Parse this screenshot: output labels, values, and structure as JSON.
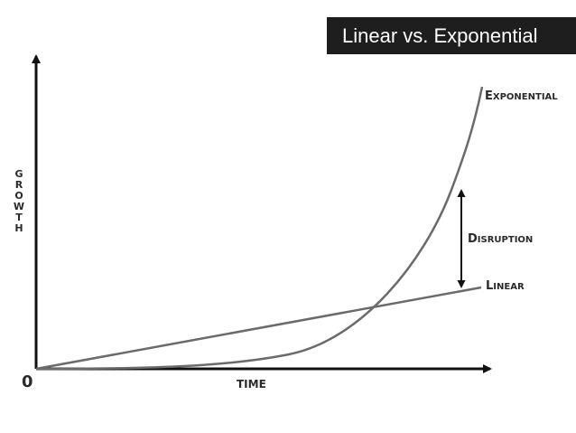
{
  "title": "Linear vs. Exponential",
  "labels": {
    "y_axis": [
      "G",
      "R",
      "O",
      "W",
      "T",
      "H"
    ],
    "x_axis": "TIME",
    "origin": "0",
    "exponential": {
      "big": "E",
      "small": "XPONENTIAL"
    },
    "linear": {
      "big": "L",
      "small": "INEAR"
    },
    "disruption": {
      "big": "D",
      "small": "ISRUPTION"
    }
  },
  "colors": {
    "banner_bg": "#1e1e1e",
    "banner_text": "#ffffff",
    "axis": "#111111",
    "curve": "#6b6b6b",
    "label": "#2a2a2a"
  }
}
